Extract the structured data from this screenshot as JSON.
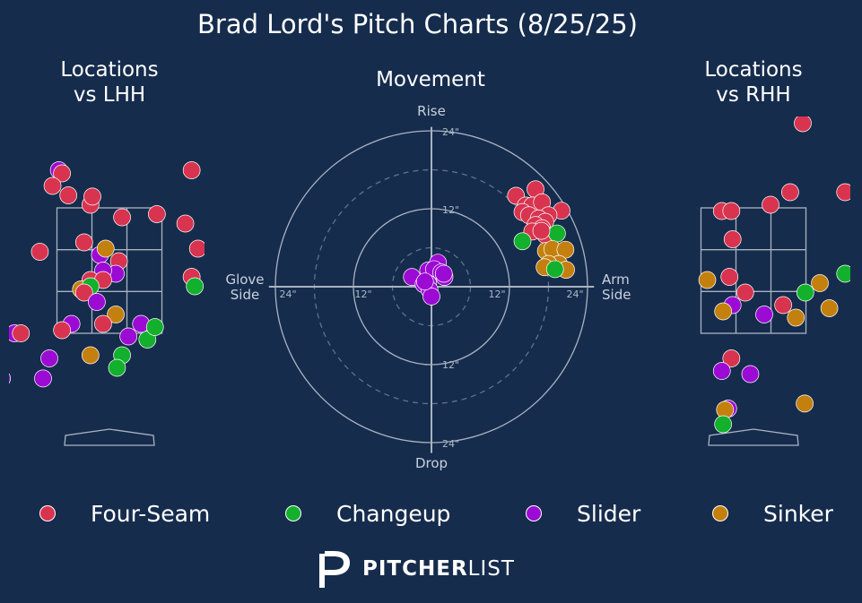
{
  "title": "Brad Lord's Pitch Charts (8/25/25)",
  "colors": {
    "background": "#162c4d",
    "Four-Seam": "#d8344f",
    "Changeup": "#12b02c",
    "Slider": "#9b0bd4",
    "Sinker": "#c4800e"
  },
  "legend": [
    {
      "label": "Four-Seam",
      "color": "#d8344f"
    },
    {
      "label": "Changeup",
      "color": "#12b02c"
    },
    {
      "label": "Slider",
      "color": "#9b0bd4"
    },
    {
      "label": "Sinker",
      "color": "#c4800e"
    }
  ],
  "logo": {
    "word_bold": "PITCHER",
    "word_light": "LIST"
  },
  "chart_data": [
    {
      "type": "scatter",
      "title": "Locations\nvs LHH",
      "xlabel": "",
      "ylabel": "",
      "xlim": [
        -2.5,
        2.5
      ],
      "ylim": [
        -0.7,
        5.0
      ],
      "strike_zone": {
        "x": [
          -0.83,
          0.83
        ],
        "z": [
          1.5,
          3.5
        ]
      },
      "points": [
        {
          "pitch": "Four-Seam",
          "x": -2.3,
          "z": 4.1
        },
        {
          "pitch": "Slider",
          "x": -0.8,
          "z": 4.1
        },
        {
          "pitch": "Four-Seam",
          "x": -0.75,
          "z": 4.05
        },
        {
          "pitch": "Four-Seam",
          "x": -0.9,
          "z": 3.85
        },
        {
          "pitch": "Four-Seam",
          "x": -0.65,
          "z": 3.7
        },
        {
          "pitch": "Four-Seam",
          "x": -0.3,
          "z": 3.55
        },
        {
          "pitch": "Four-Seam",
          "x": -0.27,
          "z": 3.68
        },
        {
          "pitch": "Four-Seam",
          "x": 1.3,
          "z": 4.1
        },
        {
          "pitch": "Four-Seam",
          "x": 0.2,
          "z": 3.35
        },
        {
          "pitch": "Four-Seam",
          "x": 0.75,
          "z": 3.4
        },
        {
          "pitch": "Four-Seam",
          "x": 1.2,
          "z": 3.25
        },
        {
          "pitch": "Four-Seam",
          "x": -0.4,
          "z": 2.95
        },
        {
          "pitch": "Four-Seam",
          "x": -1.1,
          "z": 2.8
        },
        {
          "pitch": "Slider",
          "x": -0.15,
          "z": 2.75
        },
        {
          "pitch": "Sinker",
          "x": -0.06,
          "z": 2.85
        },
        {
          "pitch": "Four-Seam",
          "x": 0.15,
          "z": 2.65
        },
        {
          "pitch": "Slider",
          "x": 0.1,
          "z": 2.45
        },
        {
          "pitch": "Four-Seam",
          "x": 1.4,
          "z": 2.85
        },
        {
          "pitch": "Slider",
          "x": -0.1,
          "z": 2.5
        },
        {
          "pitch": "Four-Seam",
          "x": -0.3,
          "z": 2.35
        },
        {
          "pitch": "Four-Seam",
          "x": -0.1,
          "z": 2.35
        },
        {
          "pitch": "Four-Seam",
          "x": 1.3,
          "z": 2.4
        },
        {
          "pitch": "Changeup",
          "x": 1.35,
          "z": 2.25
        },
        {
          "pitch": "Sinker",
          "x": -0.45,
          "z": 2.2
        },
        {
          "pitch": "Changeup",
          "x": -0.3,
          "z": 2.25
        },
        {
          "pitch": "Four-Seam",
          "x": -0.4,
          "z": 2.15
        },
        {
          "pitch": "Slider",
          "x": -0.2,
          "z": 2.0
        },
        {
          "pitch": "Sinker",
          "x": 0.1,
          "z": 1.8
        },
        {
          "pitch": "Four-Seam",
          "x": -0.1,
          "z": 1.65
        },
        {
          "pitch": "Slider",
          "x": -0.6,
          "z": 1.65
        },
        {
          "pitch": "Four-Seam",
          "x": -0.75,
          "z": 1.55
        },
        {
          "pitch": "Slider",
          "x": -1.5,
          "z": 1.5
        },
        {
          "pitch": "Four-Seam",
          "x": -1.4,
          "z": 1.5
        },
        {
          "pitch": "Slider",
          "x": 0.3,
          "z": 1.45
        },
        {
          "pitch": "Slider",
          "x": 0.5,
          "z": 1.65
        },
        {
          "pitch": "Changeup",
          "x": 0.6,
          "z": 1.4
        },
        {
          "pitch": "Changeup",
          "x": 0.72,
          "z": 1.6
        },
        {
          "pitch": "Changeup",
          "x": 0.2,
          "z": 1.15
        },
        {
          "pitch": "Sinker",
          "x": -0.3,
          "z": 1.15
        },
        {
          "pitch": "Slider",
          "x": -0.95,
          "z": 1.1
        },
        {
          "pitch": "Changeup",
          "x": 0.12,
          "z": 0.95
        },
        {
          "pitch": "Slider",
          "x": -1.7,
          "z": 0.78
        },
        {
          "pitch": "Slider",
          "x": -1.05,
          "z": 0.78
        }
      ]
    },
    {
      "type": "scatter",
      "title": "Movement",
      "xlabel": "Glove\nSide",
      "x2label": "Arm\nSide",
      "ylabel": "Rise",
      "y2label": "Drop",
      "unit": "inches",
      "rings": [
        6,
        12,
        18,
        24
      ],
      "ring_labels": [
        "24\"",
        "12\"",
        "12\"",
        "24\"",
        "24\"",
        "12\"",
        "12\"",
        "24\""
      ],
      "xlim": [
        -25,
        25
      ],
      "ylim": [
        -25,
        25
      ],
      "points": [
        {
          "pitch": "Four-Seam",
          "x": 13,
          "z": 14
        },
        {
          "pitch": "Four-Seam",
          "x": 16,
          "z": 15
        },
        {
          "pitch": "Four-Seam",
          "x": 14.5,
          "z": 12.5
        },
        {
          "pitch": "Four-Seam",
          "x": 15.5,
          "z": 12.5
        },
        {
          "pitch": "Four-Seam",
          "x": 17,
          "z": 13
        },
        {
          "pitch": "Four-Seam",
          "x": 20,
          "z": 11.7
        },
        {
          "pitch": "Four-Seam",
          "x": 14,
          "z": 11.5
        },
        {
          "pitch": "Four-Seam",
          "x": 15,
          "z": 11
        },
        {
          "pitch": "Four-Seam",
          "x": 18,
          "z": 11
        },
        {
          "pitch": "Four-Seam",
          "x": 16.5,
          "z": 10.5
        },
        {
          "pitch": "Four-Seam",
          "x": 17.5,
          "z": 10
        },
        {
          "pitch": "Four-Seam",
          "x": 16,
          "z": 9.5
        },
        {
          "pitch": "Four-Seam",
          "x": 17,
          "z": 9
        },
        {
          "pitch": "Four-Seam",
          "x": 15.5,
          "z": 8.5
        },
        {
          "pitch": "Four-Seam",
          "x": 17.5,
          "z": 8
        },
        {
          "pitch": "Changeup",
          "x": 14,
          "z": 7
        },
        {
          "pitch": "Changeup",
          "x": 19.3,
          "z": 8.2
        },
        {
          "pitch": "Four-Seam",
          "x": 16.9,
          "z": 8.6
        },
        {
          "pitch": "Sinker",
          "x": 17.6,
          "z": 5.5
        },
        {
          "pitch": "Sinker",
          "x": 18.6,
          "z": 5.8
        },
        {
          "pitch": "Sinker",
          "x": 20.6,
          "z": 5.7
        },
        {
          "pitch": "Sinker",
          "x": 19.6,
          "z": 3.5
        },
        {
          "pitch": "Sinker",
          "x": 18,
          "z": 3.5
        },
        {
          "pitch": "Sinker",
          "x": 17.4,
          "z": 3.0
        },
        {
          "pitch": "Sinker",
          "x": 20.7,
          "z": 2.6
        },
        {
          "pitch": "Changeup",
          "x": 19,
          "z": 2.7
        },
        {
          "pitch": "Slider",
          "x": 1,
          "z": 3.7
        },
        {
          "pitch": "Slider",
          "x": -0.5,
          "z": 2.5
        },
        {
          "pitch": "Slider",
          "x": 0.4,
          "z": 2.7
        },
        {
          "pitch": "Slider",
          "x": 1.5,
          "z": 2.2
        },
        {
          "pitch": "Slider",
          "x": 2,
          "z": 1.5
        },
        {
          "pitch": "Slider",
          "x": -3,
          "z": 1.5
        },
        {
          "pitch": "Slider",
          "x": 1.9,
          "z": 2.0
        },
        {
          "pitch": "Slider",
          "x": -1.2,
          "z": 0.4
        },
        {
          "pitch": "Slider",
          "x": -0.5,
          "z": 0.5
        },
        {
          "pitch": "Slider",
          "x": -0.3,
          "z": -0.5
        },
        {
          "pitch": "Slider",
          "x": 0,
          "z": -1.5
        },
        {
          "pitch": "Slider",
          "x": -1,
          "z": 0.8
        }
      ]
    },
    {
      "type": "scatter",
      "title": "Locations\nvs RHH",
      "xlabel": "",
      "ylabel": "",
      "xlim": [
        -2.5,
        2.5
      ],
      "ylim": [
        -0.7,
        5.0
      ],
      "strike_zone": {
        "x": [
          -0.83,
          0.83
        ],
        "z": [
          1.5,
          3.5
        ]
      },
      "points": [
        {
          "pitch": "Four-Seam",
          "x": 0.78,
          "z": 4.85
        },
        {
          "pitch": "Four-Seam",
          "x": 0.58,
          "z": 3.75
        },
        {
          "pitch": "Four-Seam",
          "x": 0.27,
          "z": 3.55
        },
        {
          "pitch": "Four-Seam",
          "x": -0.5,
          "z": 3.45
        },
        {
          "pitch": "Four-Seam",
          "x": -0.35,
          "z": 3.45
        },
        {
          "pitch": "Four-Seam",
          "x": 1.45,
          "z": 3.75
        },
        {
          "pitch": "Four-Seam",
          "x": -0.33,
          "z": 3.0
        },
        {
          "pitch": "Changeup",
          "x": 1.45,
          "z": 2.45
        },
        {
          "pitch": "Sinker",
          "x": -0.73,
          "z": 2.35
        },
        {
          "pitch": "Four-Seam",
          "x": -0.38,
          "z": 2.4
        },
        {
          "pitch": "Four-Seam",
          "x": -0.13,
          "z": 2.15
        },
        {
          "pitch": "Slider",
          "x": -0.33,
          "z": 1.95
        },
        {
          "pitch": "Sinker",
          "x": -0.48,
          "z": 1.85
        },
        {
          "pitch": "Four-Seam",
          "x": 0.47,
          "z": 1.95
        },
        {
          "pitch": "Slider",
          "x": 0.17,
          "z": 1.8
        },
        {
          "pitch": "Sinker",
          "x": 1.05,
          "z": 2.3
        },
        {
          "pitch": "Changeup",
          "x": 0.82,
          "z": 2.15
        },
        {
          "pitch": "Sinker",
          "x": 1.2,
          "z": 1.9
        },
        {
          "pitch": "Sinker",
          "x": 0.67,
          "z": 1.75
        },
        {
          "pitch": "Four-Seam",
          "x": -0.35,
          "z": 1.1
        },
        {
          "pitch": "Slider",
          "x": -0.5,
          "z": 0.9
        },
        {
          "pitch": "Slider",
          "x": -0.05,
          "z": 0.85
        },
        {
          "pitch": "Slider",
          "x": -0.4,
          "z": 0.3
        },
        {
          "pitch": "Sinker",
          "x": -0.45,
          "z": 0.28
        },
        {
          "pitch": "Changeup",
          "x": -0.48,
          "z": 0.05
        },
        {
          "pitch": "Sinker",
          "x": 0.81,
          "z": 0.38
        }
      ]
    }
  ]
}
